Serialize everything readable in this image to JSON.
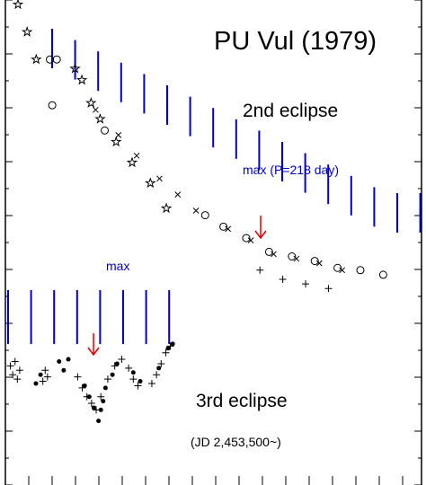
{
  "chart_data": {
    "type": "scatter",
    "title": "PU Vul (1979)",
    "xlabel": "",
    "ylabel": "",
    "grid": false,
    "colors": {
      "axis": "#000000",
      "markers": "#000000",
      "max_ticks": "#0000cc",
      "eclipse_arrow": "#dd0000"
    },
    "annotations": {
      "second_eclipse": "2nd eclipse",
      "max_period": "max (P=218 day)",
      "max_lower": "max",
      "third_eclipse": "3rd eclipse",
      "jd_note": "(JD 2,453,500~)"
    },
    "upper_panel": {
      "name": "2nd eclipse",
      "max_ticks": [
        1,
        2,
        3,
        4,
        5,
        6,
        7,
        8,
        9,
        10,
        11,
        12,
        13,
        14,
        15,
        16,
        17
      ],
      "eclipse_min": 11.4,
      "series": [
        {
          "marker": "star",
          "points": [
            [
              0,
              0
            ],
            [
              0.4,
              1.2
            ],
            [
              0.8,
              2.4
            ],
            [
              2.5,
              2.8
            ],
            [
              2.8,
              3.3
            ],
            [
              3.2,
              4.3
            ],
            [
              3.6,
              5.0
            ],
            [
              4.3,
              6.0
            ],
            [
              5.0,
              6.9
            ],
            [
              5.8,
              7.8
            ],
            [
              6.5,
              8.9
            ]
          ]
        },
        {
          "marker": "open-circle",
          "points": [
            [
              1.4,
              2.4
            ],
            [
              1.7,
              2.4
            ],
            [
              1.5,
              4.4
            ],
            [
              3.8,
              5.5
            ],
            [
              8.2,
              9.2
            ],
            [
              9.0,
              9.7
            ],
            [
              10.0,
              10.2
            ],
            [
              11.0,
              10.8
            ],
            [
              12.0,
              11.0
            ],
            [
              13.0,
              11.2
            ],
            [
              14.0,
              11.5
            ],
            [
              15.0,
              11.6
            ],
            [
              16.0,
              11.8
            ]
          ]
        },
        {
          "marker": "cross",
          "points": [
            [
              3.4,
              4.6
            ],
            [
              4.4,
              5.7
            ],
            [
              5.2,
              6.6
            ],
            [
              6.2,
              7.6
            ],
            [
              7.0,
              8.3
            ],
            [
              7.8,
              9.0
            ],
            [
              9.2,
              9.8
            ],
            [
              10.2,
              10.3
            ],
            [
              11.2,
              10.9
            ],
            [
              12.2,
              11.1
            ],
            [
              13.2,
              11.3
            ],
            [
              14.2,
              11.6
            ]
          ]
        },
        {
          "marker": "plus",
          "points": [
            [
              10.6,
              11.6
            ],
            [
              11.6,
              12.0
            ],
            [
              12.6,
              12.2
            ],
            [
              13.6,
              12.4
            ]
          ]
        }
      ]
    },
    "lower_panel": {
      "name": "3rd eclipse",
      "max_ticks": [
        0,
        1,
        2,
        3,
        4,
        5,
        6,
        7
      ],
      "eclipse_min": 3.8,
      "series": [
        {
          "marker": "plus",
          "points": [
            [
              0.1,
              1.2
            ],
            [
              0.2,
              1.6
            ],
            [
              0.3,
              1.0
            ],
            [
              0.4,
              1.8
            ],
            [
              0.5,
              1.4
            ],
            [
              1.5,
              1.9
            ],
            [
              1.6,
              1.4
            ],
            [
              1.7,
              1.7
            ],
            [
              3.0,
              1.7
            ],
            [
              3.2,
              2.2
            ],
            [
              3.4,
              2.6
            ],
            [
              3.6,
              2.9
            ],
            [
              3.8,
              3.2
            ],
            [
              4.0,
              2.6
            ],
            [
              4.3,
              1.8
            ],
            [
              4.6,
              1.2
            ],
            [
              4.9,
              0.9
            ],
            [
              5.2,
              1.3
            ],
            [
              5.4,
              1.8
            ],
            [
              5.6,
              2.1
            ],
            [
              6.2,
              2.0
            ],
            [
              6.4,
              1.6
            ],
            [
              6.6,
              1.1
            ],
            [
              6.8,
              0.6
            ],
            [
              7.0,
              0.3
            ]
          ]
        },
        {
          "marker": "filled-circle",
          "points": [
            [
              1.2,
              2.0
            ],
            [
              1.4,
              1.6
            ],
            [
              2.2,
              1.0
            ],
            [
              2.4,
              1.4
            ],
            [
              2.6,
              0.9
            ],
            [
              3.3,
              2.1
            ],
            [
              3.5,
              2.6
            ],
            [
              3.7,
              3.1
            ],
            [
              3.9,
              3.7
            ],
            [
              4.0,
              3.2
            ],
            [
              4.1,
              2.8
            ],
            [
              4.2,
              2.2
            ],
            [
              4.5,
              1.6
            ],
            [
              4.7,
              1.1
            ],
            [
              5.4,
              1.5
            ],
            [
              5.7,
              1.9
            ],
            [
              6.5,
              1.3
            ],
            [
              6.9,
              0.4
            ],
            [
              7.1,
              0.2
            ]
          ]
        }
      ]
    }
  }
}
